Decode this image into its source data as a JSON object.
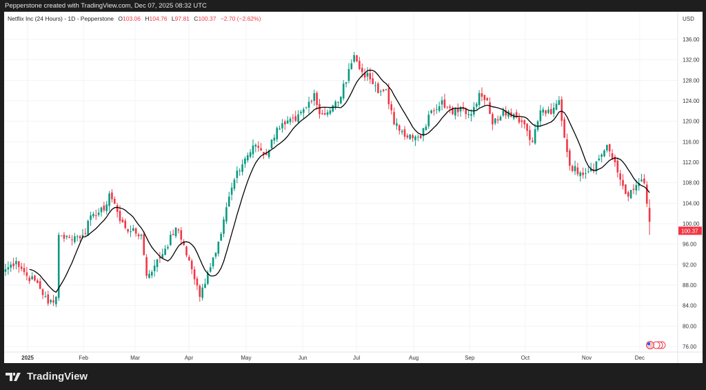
{
  "credit": "Pepperstone created with TradingView.com, Dec 07, 2025 08:32 UTC",
  "legend": {
    "symbol": "Netflix Inc (24 Hours) - 1D - Pepperstone",
    "o_label": "O",
    "o": "103.06",
    "h_label": "H",
    "h": "104.76",
    "l_label": "L",
    "l": "97.81",
    "c_label": "C",
    "c": "100.37",
    "change": "−2.70 (−2.62%)"
  },
  "currency": "USD",
  "last_price_label": "100.37",
  "brand": "TradingView",
  "colors": {
    "up": "#089981",
    "down": "#f23645",
    "ma": "#000000"
  },
  "chart_data": {
    "type": "candlestick",
    "title": "Netflix Inc (24 Hours) - 1D - Pepperstone",
    "ylim": [
      74,
      138
    ],
    "y_ticks": [
      "136.00",
      "132.00",
      "128.00",
      "124.00",
      "120.00",
      "116.00",
      "112.00",
      "108.00",
      "104.00",
      "100.00",
      "96.00",
      "92.00",
      "88.00",
      "84.00",
      "80.00",
      "76.00"
    ],
    "x_ticks": [
      {
        "label": "2025",
        "day": 8.3
      },
      {
        "label": "Feb",
        "day": 29.3
      },
      {
        "label": "Mar",
        "day": 48.7
      },
      {
        "label": "Apr",
        "day": 68.9
      },
      {
        "label": "May",
        "day": 90.4
      },
      {
        "label": "Jun",
        "day": 111.7
      },
      {
        "label": "Jul",
        "day": 131.9
      },
      {
        "label": "Aug",
        "day": 153.4
      },
      {
        "label": "Sep",
        "day": 174.4
      },
      {
        "label": "Oct",
        "day": 195.3
      },
      {
        "label": "Nov",
        "day": 218.4
      },
      {
        "label": "Dec",
        "day": 238.3
      }
    ],
    "close_anchors_day_price": [
      [
        0,
        91.1
      ],
      [
        4,
        92.7
      ],
      [
        8,
        89.8
      ],
      [
        12,
        88.4
      ],
      [
        16,
        84.4
      ],
      [
        19,
        85.7
      ],
      [
        20,
        97.8
      ],
      [
        24,
        97.2
      ],
      [
        29,
        97.8
      ],
      [
        33,
        101.9
      ],
      [
        37,
        102.6
      ],
      [
        39,
        105.9
      ],
      [
        41,
        103.9
      ],
      [
        43,
        100.5
      ],
      [
        47,
        98.5
      ],
      [
        51,
        97.8
      ],
      [
        53,
        89.8
      ],
      [
        56,
        91.8
      ],
      [
        60,
        95.1
      ],
      [
        64,
        99.2
      ],
      [
        67,
        95.8
      ],
      [
        70,
        91.1
      ],
      [
        73,
        85.7
      ],
      [
        76,
        90.4
      ],
      [
        80,
        96.5
      ],
      [
        83,
        103.2
      ],
      [
        86,
        108.6
      ],
      [
        90,
        112.7
      ],
      [
        94,
        115.4
      ],
      [
        98,
        113.4
      ],
      [
        102,
        118.7
      ],
      [
        105,
        119.4
      ],
      [
        109,
        120.1
      ],
      [
        113,
        122.8
      ],
      [
        116,
        125.5
      ],
      [
        118,
        121.4
      ],
      [
        122,
        122.1
      ],
      [
        126,
        124.8
      ],
      [
        129,
        130.2
      ],
      [
        131,
        132.9
      ],
      [
        133,
        130.2
      ],
      [
        137,
        128.2
      ],
      [
        140,
        125.5
      ],
      [
        143,
        126.2
      ],
      [
        146,
        119.4
      ],
      [
        149,
        118.1
      ],
      [
        153,
        116.7
      ],
      [
        156,
        116.7
      ],
      [
        160,
        122.1
      ],
      [
        164,
        124.1
      ],
      [
        168,
        121.4
      ],
      [
        171,
        122.8
      ],
      [
        175,
        121.4
      ],
      [
        178,
        125.5
      ],
      [
        181,
        124.1
      ],
      [
        183,
        119.4
      ],
      [
        187,
        122.1
      ],
      [
        191,
        121.4
      ],
      [
        195,
        119.4
      ],
      [
        198,
        116.0
      ],
      [
        201,
        122.1
      ],
      [
        205,
        121.4
      ],
      [
        208,
        124.1
      ],
      [
        209,
        120.1
      ],
      [
        212,
        111.3
      ],
      [
        216,
        110.0
      ],
      [
        220,
        110.7
      ],
      [
        223,
        112.7
      ],
      [
        226,
        115.4
      ],
      [
        228,
        112.7
      ],
      [
        231,
        108.6
      ],
      [
        234,
        105.3
      ],
      [
        236,
        106.6
      ],
      [
        239,
        108.6
      ],
      [
        240,
        107.9
      ],
      [
        241,
        103.9
      ],
      [
        242,
        100.37
      ]
    ],
    "last_candle": {
      "open": 103.06,
      "high": 104.76,
      "low": 97.81,
      "close": 100.37
    },
    "moving_average_period": 10
  }
}
